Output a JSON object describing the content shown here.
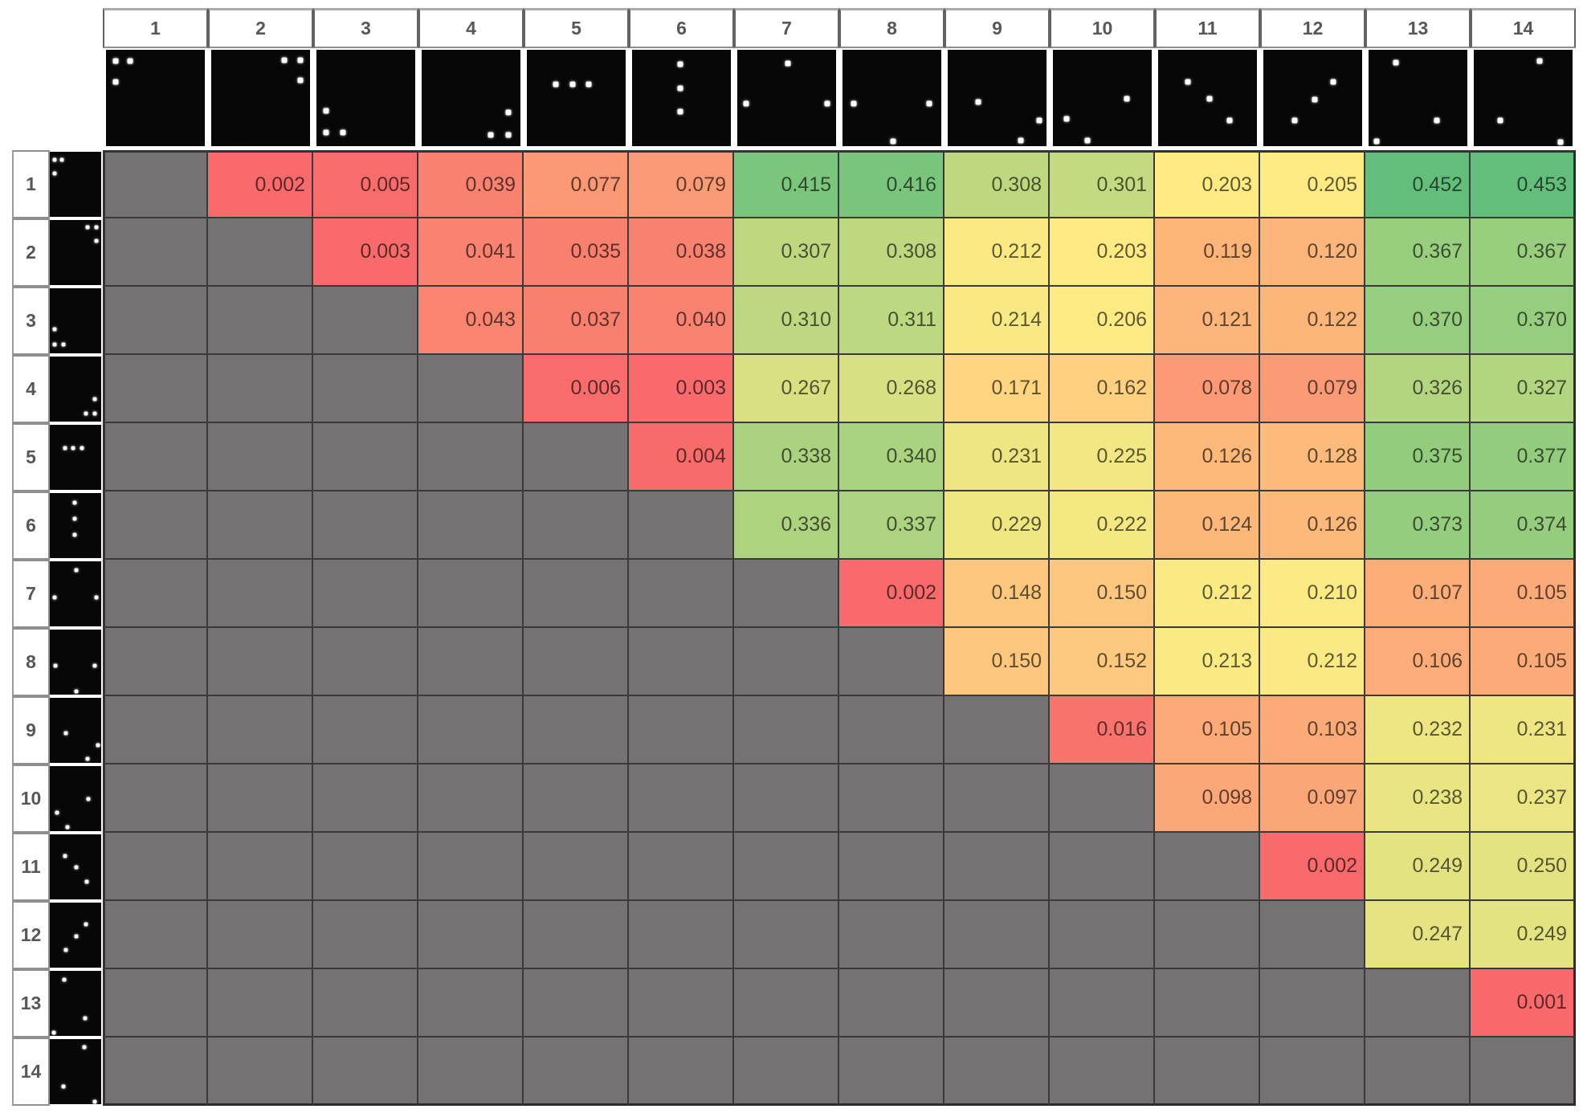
{
  "chart_data": {
    "type": "heatmap",
    "title": "",
    "col_labels": [
      "1",
      "2",
      "3",
      "4",
      "5",
      "6",
      "7",
      "8",
      "9",
      "10",
      "11",
      "12",
      "13",
      "14"
    ],
    "row_labels": [
      "1",
      "2",
      "3",
      "4",
      "5",
      "6",
      "7",
      "8",
      "9",
      "10",
      "11",
      "12",
      "13",
      "14"
    ],
    "value_range": [
      0.001,
      0.453
    ],
    "legend_position": "none",
    "cells": [
      [
        null,
        "0.002",
        "0.005",
        "0.039",
        "0.077",
        "0.079",
        "0.415",
        "0.416",
        "0.308",
        "0.301",
        "0.203",
        "0.205",
        "0.452",
        "0.453"
      ],
      [
        null,
        null,
        "0.003",
        "0.041",
        "0.035",
        "0.038",
        "0.307",
        "0.308",
        "0.212",
        "0.203",
        "0.119",
        "0.120",
        "0.367",
        "0.367"
      ],
      [
        null,
        null,
        null,
        "0.043",
        "0.037",
        "0.040",
        "0.310",
        "0.311",
        "0.214",
        "0.206",
        "0.121",
        "0.122",
        "0.370",
        "0.370"
      ],
      [
        null,
        null,
        null,
        null,
        "0.006",
        "0.003",
        "0.267",
        "0.268",
        "0.171",
        "0.162",
        "0.078",
        "0.079",
        "0.326",
        "0.327"
      ],
      [
        null,
        null,
        null,
        null,
        null,
        "0.004",
        "0.338",
        "0.340",
        "0.231",
        "0.225",
        "0.126",
        "0.128",
        "0.375",
        "0.377"
      ],
      [
        null,
        null,
        null,
        null,
        null,
        null,
        "0.336",
        "0.337",
        "0.229",
        "0.222",
        "0.124",
        "0.126",
        "0.373",
        "0.374"
      ],
      [
        null,
        null,
        null,
        null,
        null,
        null,
        null,
        "0.002",
        "0.148",
        "0.150",
        "0.212",
        "0.210",
        "0.107",
        "0.105"
      ],
      [
        null,
        null,
        null,
        null,
        null,
        null,
        null,
        null,
        "0.150",
        "0.152",
        "0.213",
        "0.212",
        "0.106",
        "0.105"
      ],
      [
        null,
        null,
        null,
        null,
        null,
        null,
        null,
        null,
        null,
        "0.016",
        "0.105",
        "0.103",
        "0.232",
        "0.231"
      ],
      [
        null,
        null,
        null,
        null,
        null,
        null,
        null,
        null,
        null,
        null,
        "0.098",
        "0.097",
        "0.238",
        "0.237"
      ],
      [
        null,
        null,
        null,
        null,
        null,
        null,
        null,
        null,
        null,
        null,
        null,
        "0.002",
        "0.249",
        "0.250"
      ],
      [
        null,
        null,
        null,
        null,
        null,
        null,
        null,
        null,
        null,
        null,
        null,
        null,
        "0.247",
        "0.249"
      ],
      [
        null,
        null,
        null,
        null,
        null,
        null,
        null,
        null,
        null,
        null,
        null,
        null,
        null,
        "0.001"
      ],
      [
        null,
        null,
        null,
        null,
        null,
        null,
        null,
        null,
        null,
        null,
        null,
        null,
        null,
        null
      ]
    ]
  },
  "thumbnails": {
    "datasets": [
      {
        "id": "1",
        "dots": [
          [
            10,
            12
          ],
          [
            24,
            12
          ],
          [
            10,
            33
          ]
        ]
      },
      {
        "id": "2",
        "dots": [
          [
            74,
            11
          ],
          [
            90,
            11
          ],
          [
            90,
            32
          ]
        ]
      },
      {
        "id": "3",
        "dots": [
          [
            10,
            63
          ],
          [
            10,
            86
          ],
          [
            27,
            86
          ]
        ]
      },
      {
        "id": "4",
        "dots": [
          [
            88,
            65
          ],
          [
            70,
            88
          ],
          [
            88,
            88
          ]
        ]
      },
      {
        "id": "5",
        "dots": [
          [
            29,
            36
          ],
          [
            46,
            36
          ],
          [
            63,
            36
          ]
        ]
      },
      {
        "id": "6",
        "dots": [
          [
            49,
            15
          ],
          [
            49,
            40
          ],
          [
            49,
            64
          ]
        ]
      },
      {
        "id": "7",
        "dots": [
          [
            51,
            14
          ],
          [
            9,
            56
          ],
          [
            91,
            56
          ]
        ]
      },
      {
        "id": "8",
        "dots": [
          [
            11,
            56
          ],
          [
            88,
            56
          ],
          [
            51,
            95
          ]
        ]
      },
      {
        "id": "9",
        "dots": [
          [
            31,
            54
          ],
          [
            93,
            73
          ],
          [
            74,
            94
          ]
        ]
      },
      {
        "id": "10",
        "dots": [
          [
            75,
            51
          ],
          [
            14,
            72
          ],
          [
            35,
            94
          ]
        ]
      },
      {
        "id": "11",
        "dots": [
          [
            30,
            33
          ],
          [
            52,
            51
          ],
          [
            72,
            73
          ]
        ]
      },
      {
        "id": "12",
        "dots": [
          [
            71,
            33
          ],
          [
            52,
            52
          ],
          [
            32,
            73
          ]
        ]
      },
      {
        "id": "13",
        "dots": [
          [
            28,
            13
          ],
          [
            69,
            73
          ],
          [
            8,
            95
          ]
        ]
      },
      {
        "id": "14",
        "dots": [
          [
            67,
            12
          ],
          [
            27,
            73
          ],
          [
            88,
            96
          ]
        ]
      }
    ]
  },
  "colors": {
    "scale_low": "#F8696B",
    "scale_mid": "#FFEB84",
    "scale_high": "#63BE7B",
    "empty_cell": "#767274",
    "grid_line": "#3A3A3A",
    "header_border": "#8F8F8F",
    "header_text": "#575757",
    "thumb_background": "#070707",
    "thumb_dot": "#FFFFFF",
    "page_background": "#FFFFFF"
  },
  "scale_points": {
    "min": 0.001,
    "mid": 0.205,
    "max": 0.453
  }
}
